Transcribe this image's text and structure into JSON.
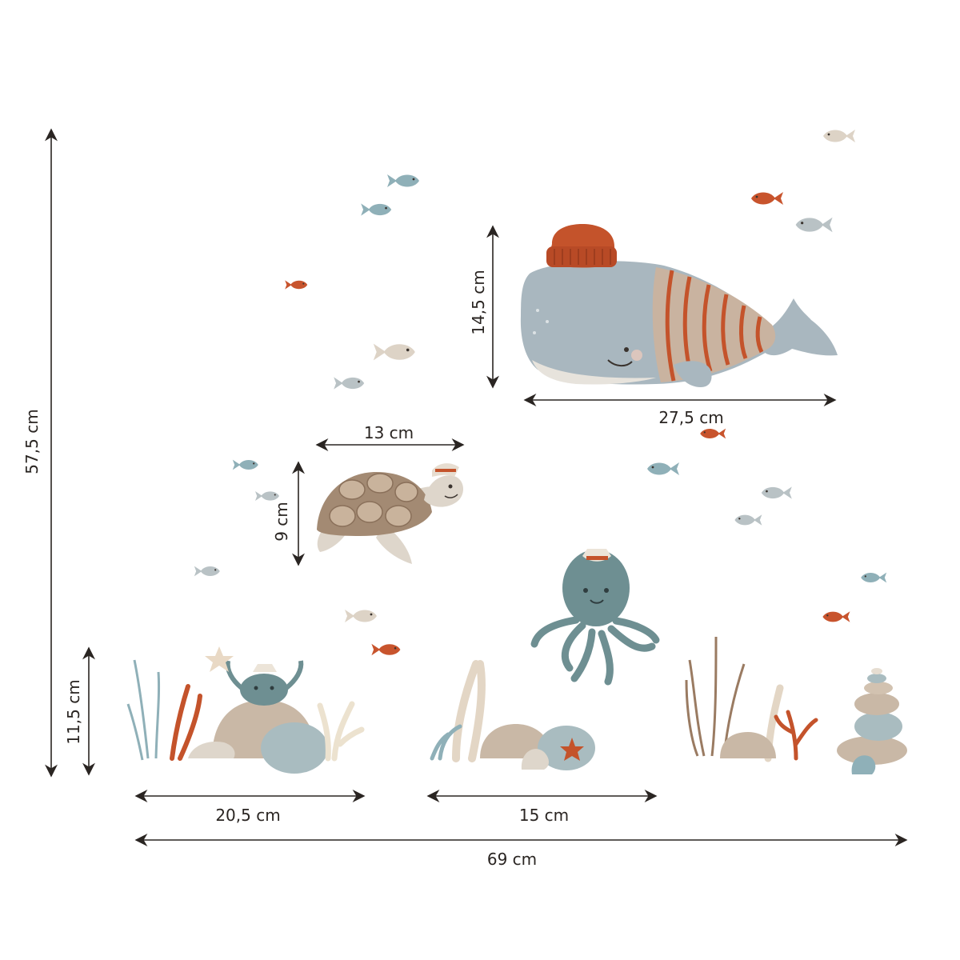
{
  "dimensions": {
    "total_height": "57,5 cm",
    "total_width": "69 cm",
    "whale_height": "14,5 cm",
    "whale_width": "27,5 cm",
    "turtle_width": "13 cm",
    "turtle_height": "9 cm",
    "crab_group_height": "11,5 cm",
    "crab_group_width": "20,5 cm",
    "rock_group_width": "15 cm"
  },
  "colors": {
    "arrow": "#2a2522",
    "blue_fish": "#8fb0b8",
    "orange_fish": "#c8542d",
    "grey_fish": "#b9c2c5",
    "beige_fish": "#ddd3c6",
    "whale_body": "#a9b7bf",
    "whale_sweater": "#c9b3a0",
    "hat": "#c4532b",
    "turtle_shell": "#a38a73",
    "octopus": "#6e8f92",
    "rock": "#c9b8a6",
    "stone_blue": "#a9bcc0",
    "coral": "#c4532b",
    "seaweed": "#9a7b62"
  }
}
